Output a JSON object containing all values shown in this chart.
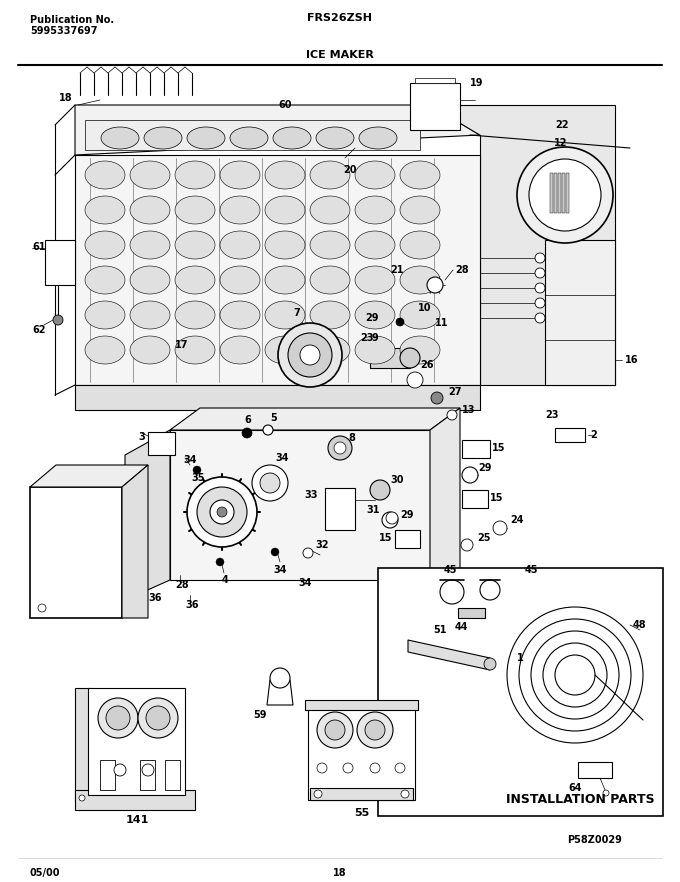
{
  "title_left_line1": "Publication No.",
  "title_left_line2": "5995337697",
  "title_center_top": "FRS26ZSH",
  "title_center_bottom": "ICE MAKER",
  "bottom_left": "05/00",
  "bottom_center": "18",
  "bottom_right_line1": "P58Z0029",
  "installation_parts_text": "INSTALLATION PARTS",
  "bg_color": "#ffffff",
  "fig_width": 6.8,
  "fig_height": 8.82,
  "dpi": 100
}
